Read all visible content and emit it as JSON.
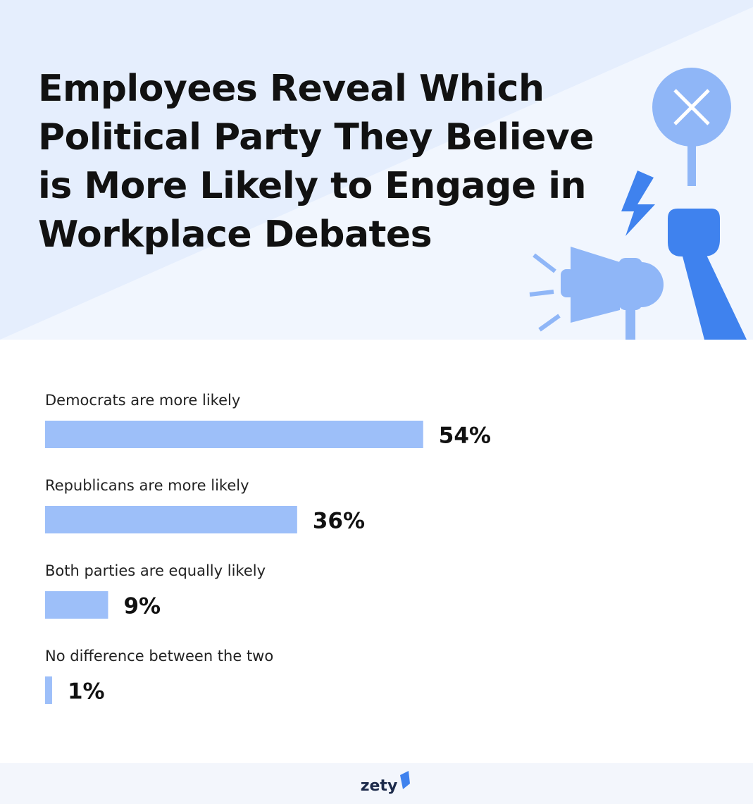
{
  "chart_data": {
    "type": "bar",
    "orientation": "horizontal",
    "title": "Employees Reveal Which Political Party They Believe is More Likely to Engage in Workplace Debates",
    "categories": [
      "Democrats are more likely",
      "Republicans are more likely",
      "Both parties are equally likely",
      "No difference between the two"
    ],
    "values": [
      54,
      36,
      9,
      1
    ],
    "value_labels": [
      "54%",
      "36%",
      "9%",
      "1%"
    ],
    "color": "#9dbff9",
    "xlim": [
      0,
      100
    ]
  },
  "footer": {
    "logo": "zety"
  }
}
